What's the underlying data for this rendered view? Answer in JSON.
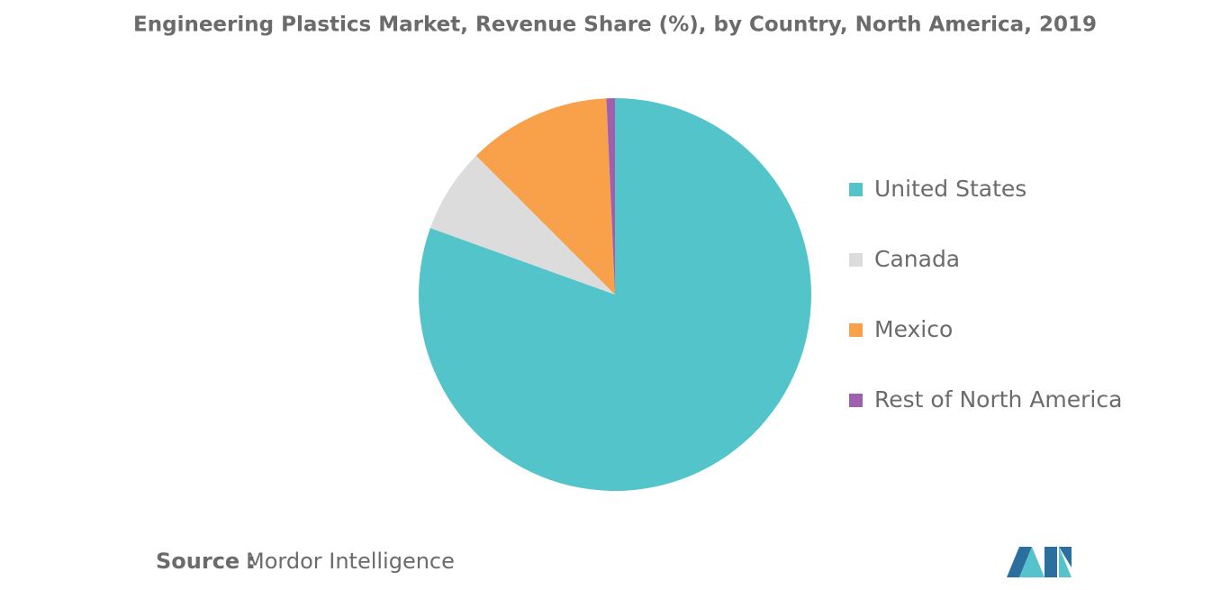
{
  "chart_data": {
    "type": "pie",
    "title": "Engineering Plastics Market, Revenue Share (%), by Country, North America, 2019",
    "categories": [
      "United States",
      "Canada",
      "Mexico",
      "Rest of North America"
    ],
    "values": [
      80.5,
      7,
      11.8,
      0.7
    ],
    "colors": [
      "#53c4ca",
      "#dcdcdc",
      "#f9a04b",
      "#a060b0"
    ],
    "legend": "right",
    "source_label": "Source :",
    "source": "Mordor Intelligence"
  }
}
